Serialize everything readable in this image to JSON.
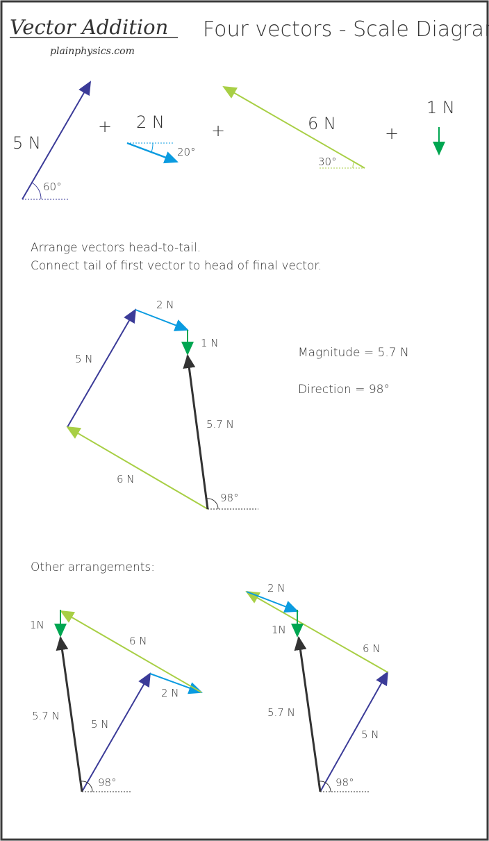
{
  "header": {
    "logo_text": "Vector Addition",
    "site": "plainphysics.com",
    "title": "Four vectors - Scale Diagram"
  },
  "colors": {
    "v5": "#3b3b98",
    "v2": "#0a9be0",
    "v6": "#a8cf45",
    "v1": "#00a651",
    "resultant": "#333333",
    "border": "#3a3a3a"
  },
  "vectors": {
    "v5": {
      "label": "5 N",
      "angle": "60°"
    },
    "v2": {
      "label": "2 N",
      "angle": "20°"
    },
    "v6": {
      "label": "6 N",
      "angle": "30°"
    },
    "v1": {
      "label": "1 N"
    },
    "plus": "+"
  },
  "instructions": {
    "line1": "Arrange vectors head-to-tail.",
    "line2": "Connect tail of first vector to head of final vector."
  },
  "main_diagram": {
    "v5": "5 N",
    "v2": "2 N",
    "v1": "1 N",
    "v6": "6 N",
    "resultant": "5.7 N",
    "angle": "98°",
    "magnitude": "Magnitude = 5.7 N",
    "direction": "Direction = 98°"
  },
  "other": {
    "heading": "Other arrangements:",
    "left": {
      "v1": "1N",
      "v6": "6 N",
      "v2": "2 N",
      "resultant": "5.7 N",
      "v5": "5 N",
      "angle": "98°"
    },
    "right": {
      "v2": "2 N",
      "v1": "1N",
      "v6": "6 N",
      "resultant": "5.7 N",
      "v5": "5 N",
      "angle": "98°"
    }
  }
}
